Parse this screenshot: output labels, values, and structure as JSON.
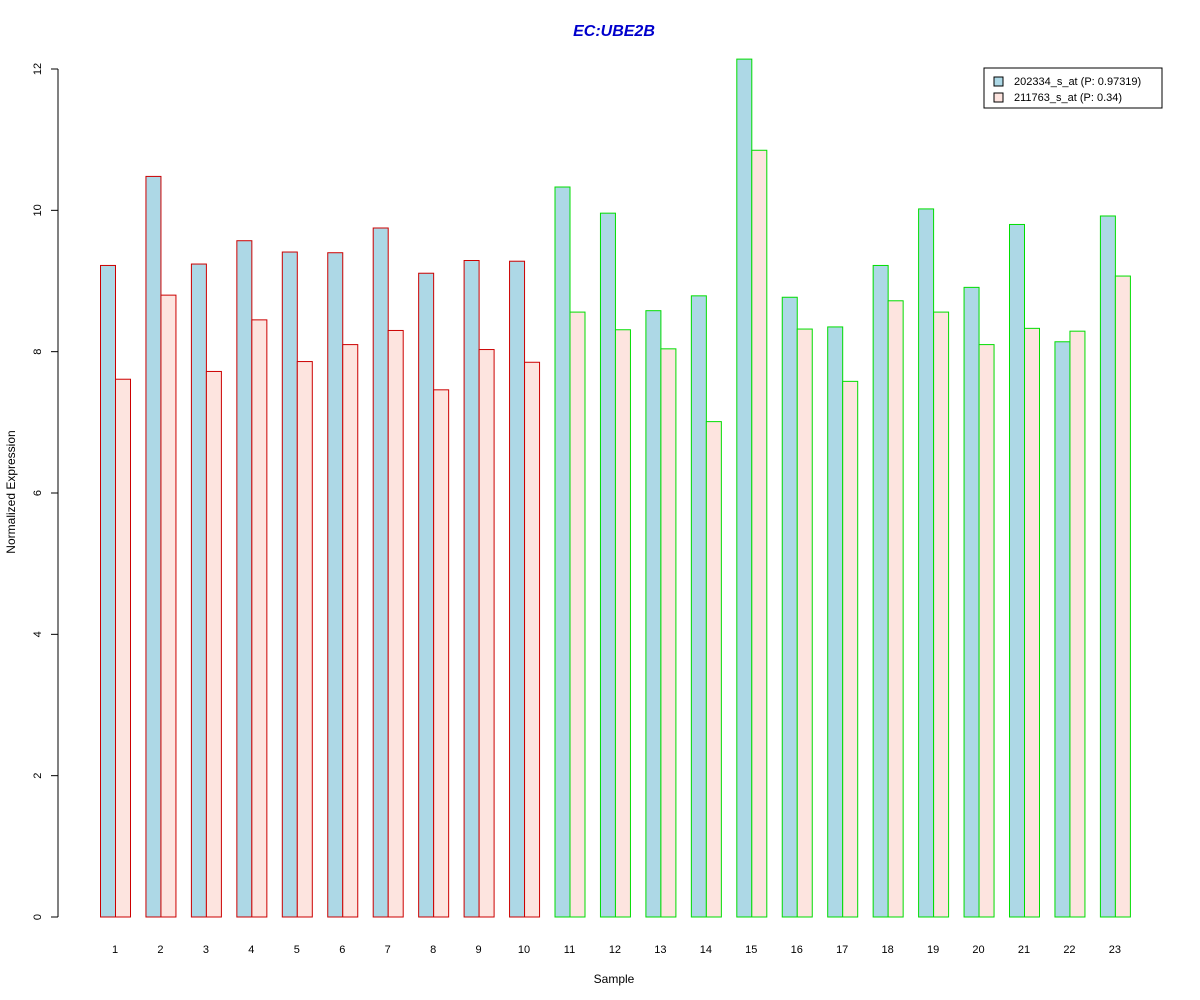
{
  "chart_data": {
    "type": "bar",
    "title": "EC:UBE2B",
    "xlabel": "Sample",
    "ylabel": "Normalized Expression",
    "categories": [
      "1",
      "2",
      "3",
      "4",
      "5",
      "6",
      "7",
      "8",
      "9",
      "10",
      "11",
      "12",
      "13",
      "14",
      "15",
      "16",
      "17",
      "18",
      "19",
      "20",
      "21",
      "22",
      "23"
    ],
    "yticks": [
      0,
      2,
      4,
      6,
      8,
      10,
      12
    ],
    "ylim": [
      0,
      12.2
    ],
    "grid": false,
    "legend_position": "top-right",
    "series": [
      {
        "name": "202334_s_at (P: 0.97319)",
        "fill": "#add8e6",
        "values": [
          9.22,
          10.48,
          9.24,
          9.57,
          9.41,
          9.4,
          9.75,
          9.11,
          9.29,
          9.28,
          10.33,
          9.96,
          8.58,
          8.79,
          12.14,
          8.77,
          8.35,
          9.22,
          10.02,
          8.91,
          9.8,
          8.14,
          9.92
        ]
      },
      {
        "name": "211763_s_at (P: 0.34)",
        "fill": "#fde4df",
        "values": [
          7.61,
          8.8,
          7.72,
          8.45,
          7.86,
          8.1,
          8.3,
          7.46,
          8.03,
          7.85,
          8.56,
          8.31,
          8.04,
          7.01,
          10.85,
          8.32,
          7.58,
          8.72,
          8.56,
          8.1,
          8.33,
          8.29,
          9.07
        ]
      }
    ],
    "group_border_colors": [
      "#cc0000",
      "#cc0000",
      "#cc0000",
      "#cc0000",
      "#cc0000",
      "#cc0000",
      "#cc0000",
      "#cc0000",
      "#cc0000",
      "#cc0000",
      "#00dd00",
      "#00dd00",
      "#00dd00",
      "#00dd00",
      "#00dd00",
      "#00dd00",
      "#00dd00",
      "#00dd00",
      "#00dd00",
      "#00dd00",
      "#00dd00",
      "#00dd00",
      "#00dd00"
    ],
    "title_color": "#0000cc"
  }
}
